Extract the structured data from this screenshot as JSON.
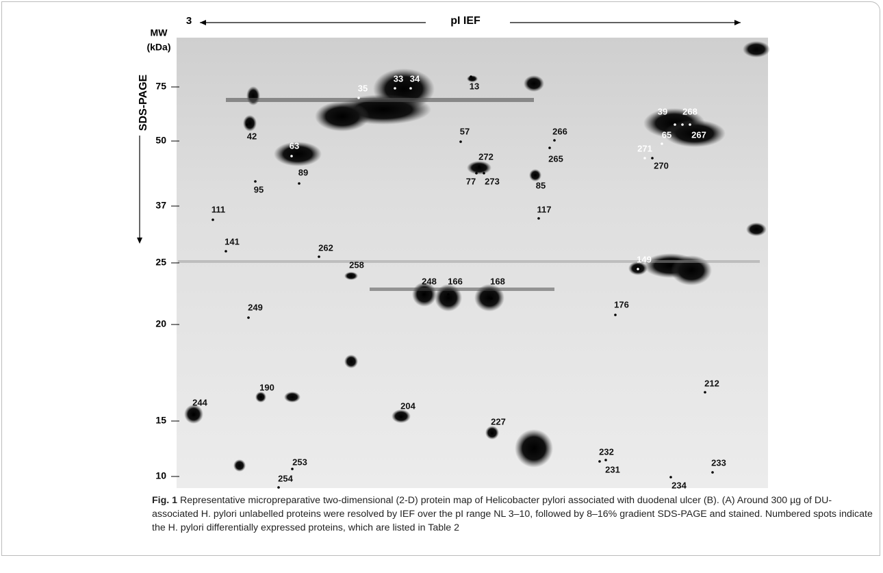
{
  "figure": {
    "pi_start_label": "3",
    "pi_axis_label": "pI  IEF",
    "mw_title_line1": "MW",
    "mw_title_line2": "(kDa)",
    "sds_label": "SDS-PAGE",
    "mw_markers": [
      "75",
      "50",
      "37",
      "25",
      "20",
      "15",
      "10"
    ],
    "spots": [
      "13",
      "33",
      "34",
      "35",
      "39",
      "268",
      "42",
      "57",
      "266",
      "65",
      "267",
      "63",
      "271",
      "265",
      "272",
      "270",
      "89",
      "77",
      "273",
      "85",
      "95",
      "111",
      "117",
      "141",
      "262",
      "258",
      "149",
      "248",
      "166",
      "168",
      "176",
      "249",
      "190",
      "212",
      "244",
      "204",
      "227",
      "232",
      "253",
      "233",
      "231",
      "254",
      "234"
    ]
  },
  "caption": {
    "label": "Fig. 1",
    "text": "Representative micropreparative two-dimensional (2-D) protein map of Helicobacter pylori associated with duodenal ulcer (B). (A) Around 300 µg of DU-associated H. pylori unlabelled proteins were resolved by IEF over the pI range NL 3–10, followed by 8–16% gradient SDS-PAGE and stained. Numbered spots indicate the H. pylori differentially expressed proteins, which are listed in Table 2"
  }
}
